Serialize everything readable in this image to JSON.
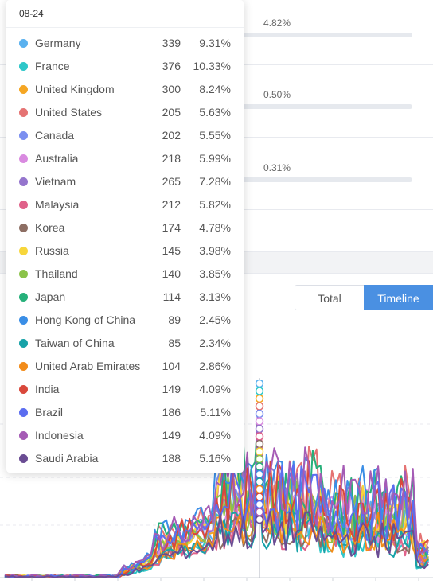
{
  "background_rows": [
    {
      "percent": "4.82%"
    },
    {
      "percent": "0.50%"
    },
    {
      "percent": "0.31%"
    }
  ],
  "view_toggle": {
    "total_label": "Total",
    "timeline_label": "Timeline",
    "active": "Timeline"
  },
  "tooltip": {
    "date": "08-24",
    "items": [
      {
        "name": "Germany",
        "count": "339",
        "percent": "9.31%",
        "color": "#5ab1ef"
      },
      {
        "name": "France",
        "count": "376",
        "percent": "10.33%",
        "color": "#2ec7c9"
      },
      {
        "name": "United Kingdom",
        "count": "300",
        "percent": "8.24%",
        "color": "#f5a623"
      },
      {
        "name": "United States",
        "count": "205",
        "percent": "5.63%",
        "color": "#e57373"
      },
      {
        "name": "Canada",
        "count": "202",
        "percent": "5.55%",
        "color": "#7b8ff0"
      },
      {
        "name": "Australia",
        "count": "218",
        "percent": "5.99%",
        "color": "#d98ae0"
      },
      {
        "name": "Vietnam",
        "count": "265",
        "percent": "7.28%",
        "color": "#9575cd"
      },
      {
        "name": "Malaysia",
        "count": "212",
        "percent": "5.82%",
        "color": "#e0628a"
      },
      {
        "name": "Korea",
        "count": "174",
        "percent": "4.78%",
        "color": "#8d6e63"
      },
      {
        "name": "Russia",
        "count": "145",
        "percent": "3.98%",
        "color": "#f7d63b"
      },
      {
        "name": "Thailand",
        "count": "140",
        "percent": "3.85%",
        "color": "#8bc34a"
      },
      {
        "name": "Japan",
        "count": "114",
        "percent": "3.13%",
        "color": "#26b07a"
      },
      {
        "name": "Hong Kong of China",
        "count": "89",
        "percent": "2.45%",
        "color": "#3a8ee6"
      },
      {
        "name": "Taiwan of China",
        "count": "85",
        "percent": "2.34%",
        "color": "#17a2a8"
      },
      {
        "name": "United Arab Emirates",
        "count": "104",
        "percent": "2.86%",
        "color": "#f28c1a"
      },
      {
        "name": "India",
        "count": "149",
        "percent": "4.09%",
        "color": "#d9483b"
      },
      {
        "name": "Brazil",
        "count": "186",
        "percent": "5.11%",
        "color": "#5b6df0"
      },
      {
        "name": "Indonesia",
        "count": "149",
        "percent": "4.09%",
        "color": "#a55bb5"
      },
      {
        "name": "Saudi Arabia",
        "count": "188",
        "percent": "5.16%",
        "color": "#6a4c93"
      }
    ]
  }
}
